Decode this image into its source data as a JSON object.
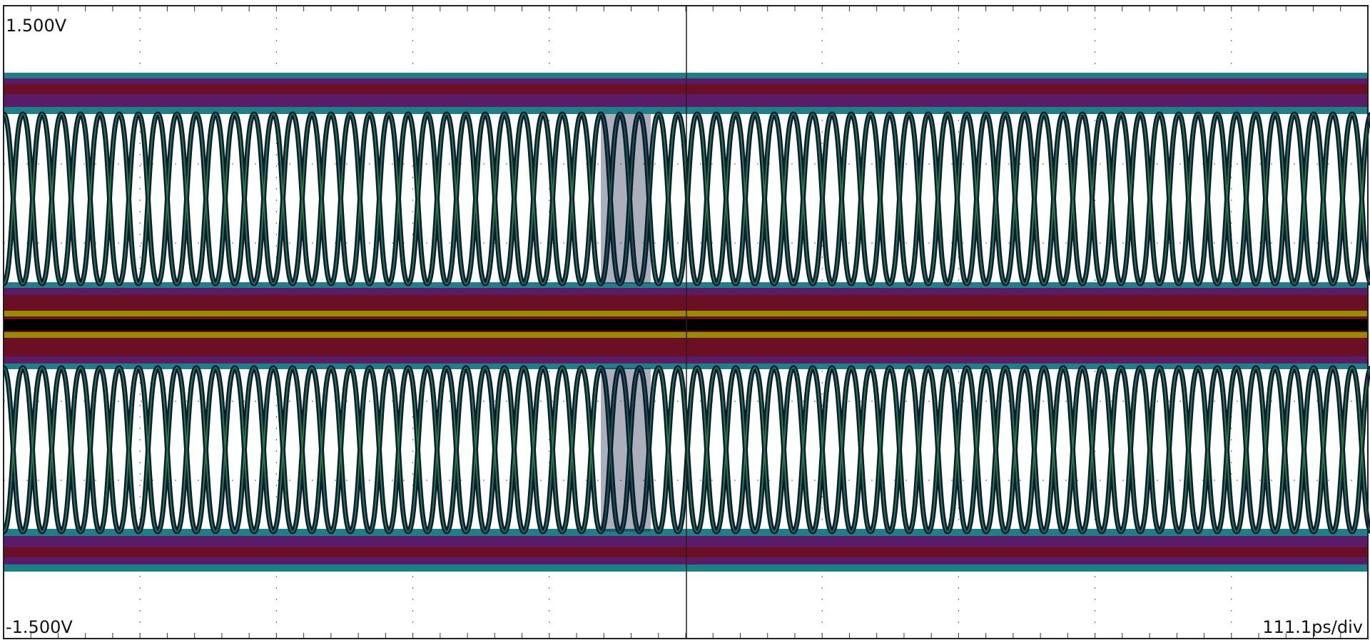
{
  "display": {
    "top_label": "1.500V",
    "bottom_label": "-1.500V",
    "timebase": "111.1ps/div"
  }
}
